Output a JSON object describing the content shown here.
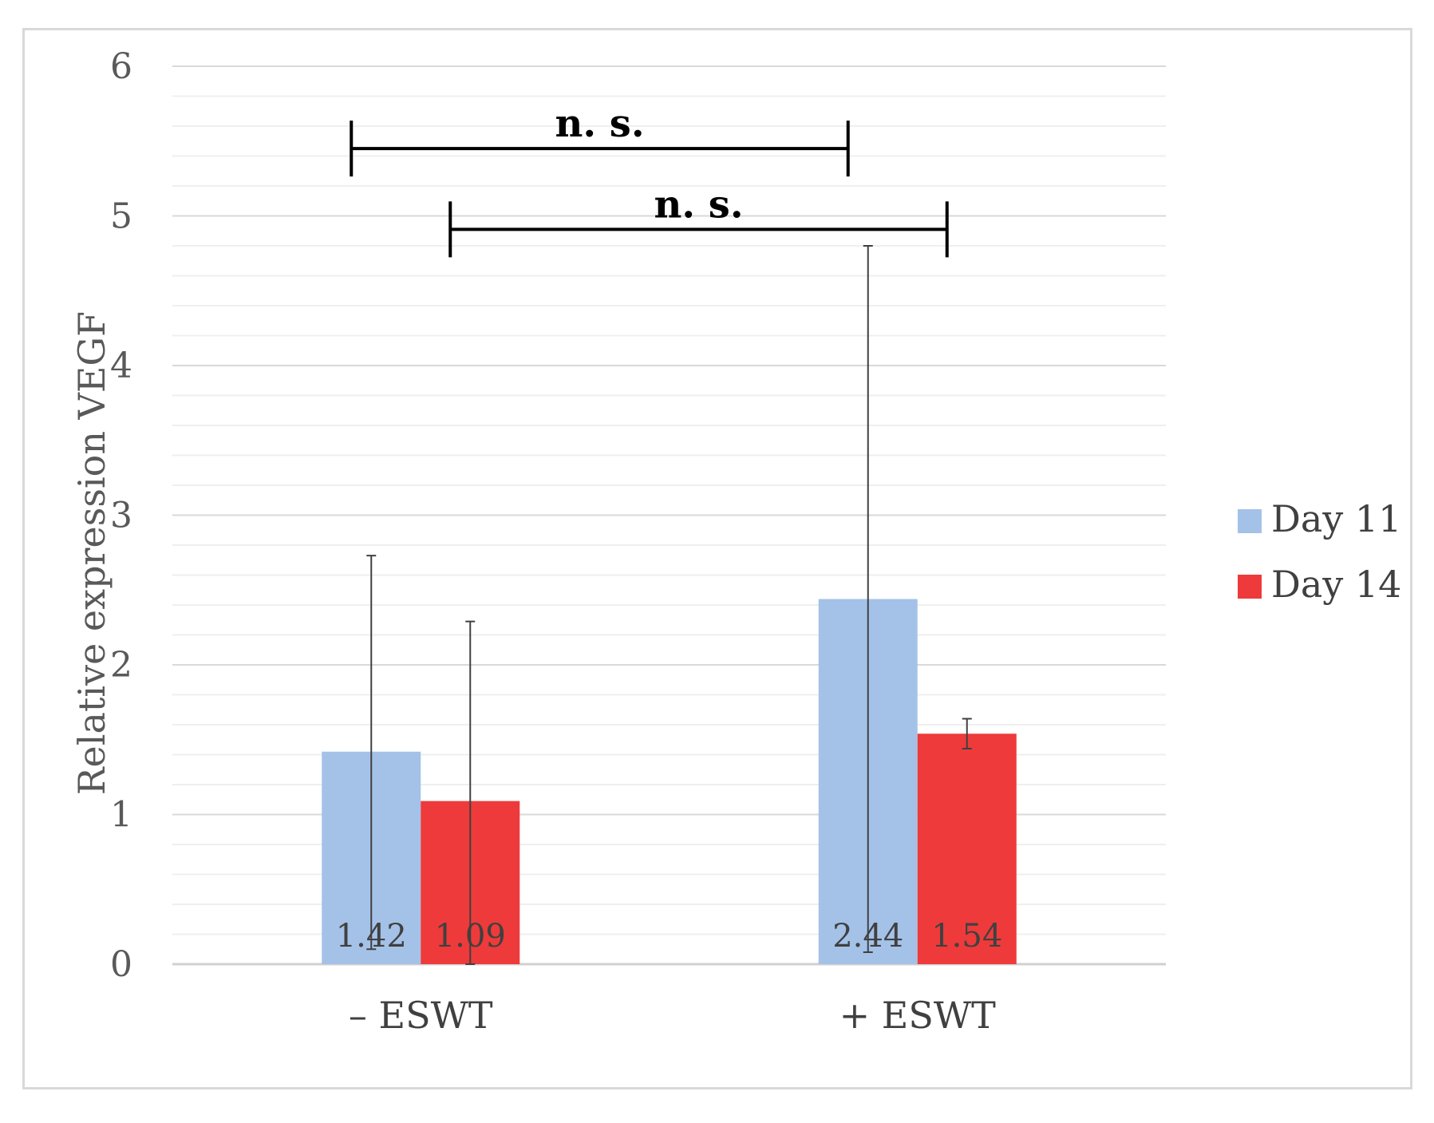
{
  "chart_data": {
    "type": "bar",
    "title": "",
    "xlabel": "",
    "ylabel": "Relative expression VEGF",
    "ylim": [
      0,
      6
    ],
    "yticks": [
      "0",
      "1",
      "2",
      "3",
      "4",
      "5",
      "6"
    ],
    "minor_gridlines": true,
    "legend_position": "right",
    "categories": [
      "– ESWT",
      "+ ESWT"
    ],
    "series": [
      {
        "name": "Day 11",
        "color": "#a4c2e8",
        "values": [
          1.42,
          2.44
        ],
        "value_labels": [
          "1.42",
          "2.44"
        ],
        "error_low": [
          0.1,
          0.08
        ],
        "error_high": [
          2.73,
          4.8
        ]
      },
      {
        "name": "Day 14",
        "color": "#ee3a3a",
        "values": [
          1.09,
          1.54
        ],
        "value_labels": [
          "1.09",
          "1.54"
        ],
        "error_low": [
          0.0,
          1.44
        ],
        "error_high": [
          2.29,
          1.64
        ]
      }
    ],
    "annotations": [
      {
        "text": "n. s.",
        "from": "– ESWT / Day 11",
        "to": "+ ESWT / Day 11",
        "y": 5.45
      },
      {
        "text": "n. s.",
        "from": "– ESWT / Day 14",
        "to": "+ ESWT / Day 14",
        "y": 4.91
      }
    ]
  }
}
